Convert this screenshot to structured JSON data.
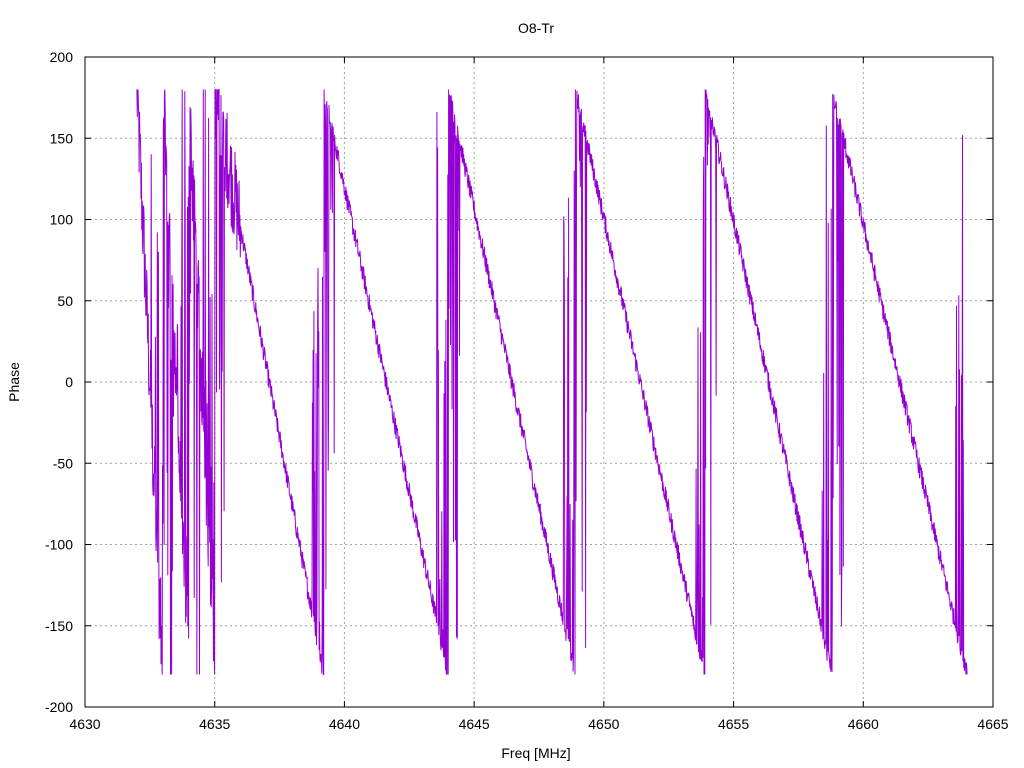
{
  "chart_data": {
    "type": "line",
    "title": "O8-Tr",
    "xlabel": "Freq [MHz]",
    "ylabel": "Phase",
    "xlim": [
      4630,
      4665
    ],
    "ylim": [
      -200,
      200
    ],
    "xticks": [
      4630,
      4635,
      4640,
      4645,
      4650,
      4655,
      4660,
      4665
    ],
    "yticks": [
      -200,
      -150,
      -100,
      -50,
      0,
      50,
      100,
      150,
      200
    ],
    "grid": true,
    "series": [
      {
        "color": "#9400d3",
        "sawtooth": {
          "x_start": 4632.0,
          "x_end": 4664.0,
          "wrap_at": [
            4633.0,
            4634.0,
            4635.0,
            4639.2,
            4644.0,
            4648.9,
            4653.9,
            4658.8,
            4664.0
          ],
          "phase_range": [
            -180,
            180
          ]
        }
      }
    ]
  }
}
